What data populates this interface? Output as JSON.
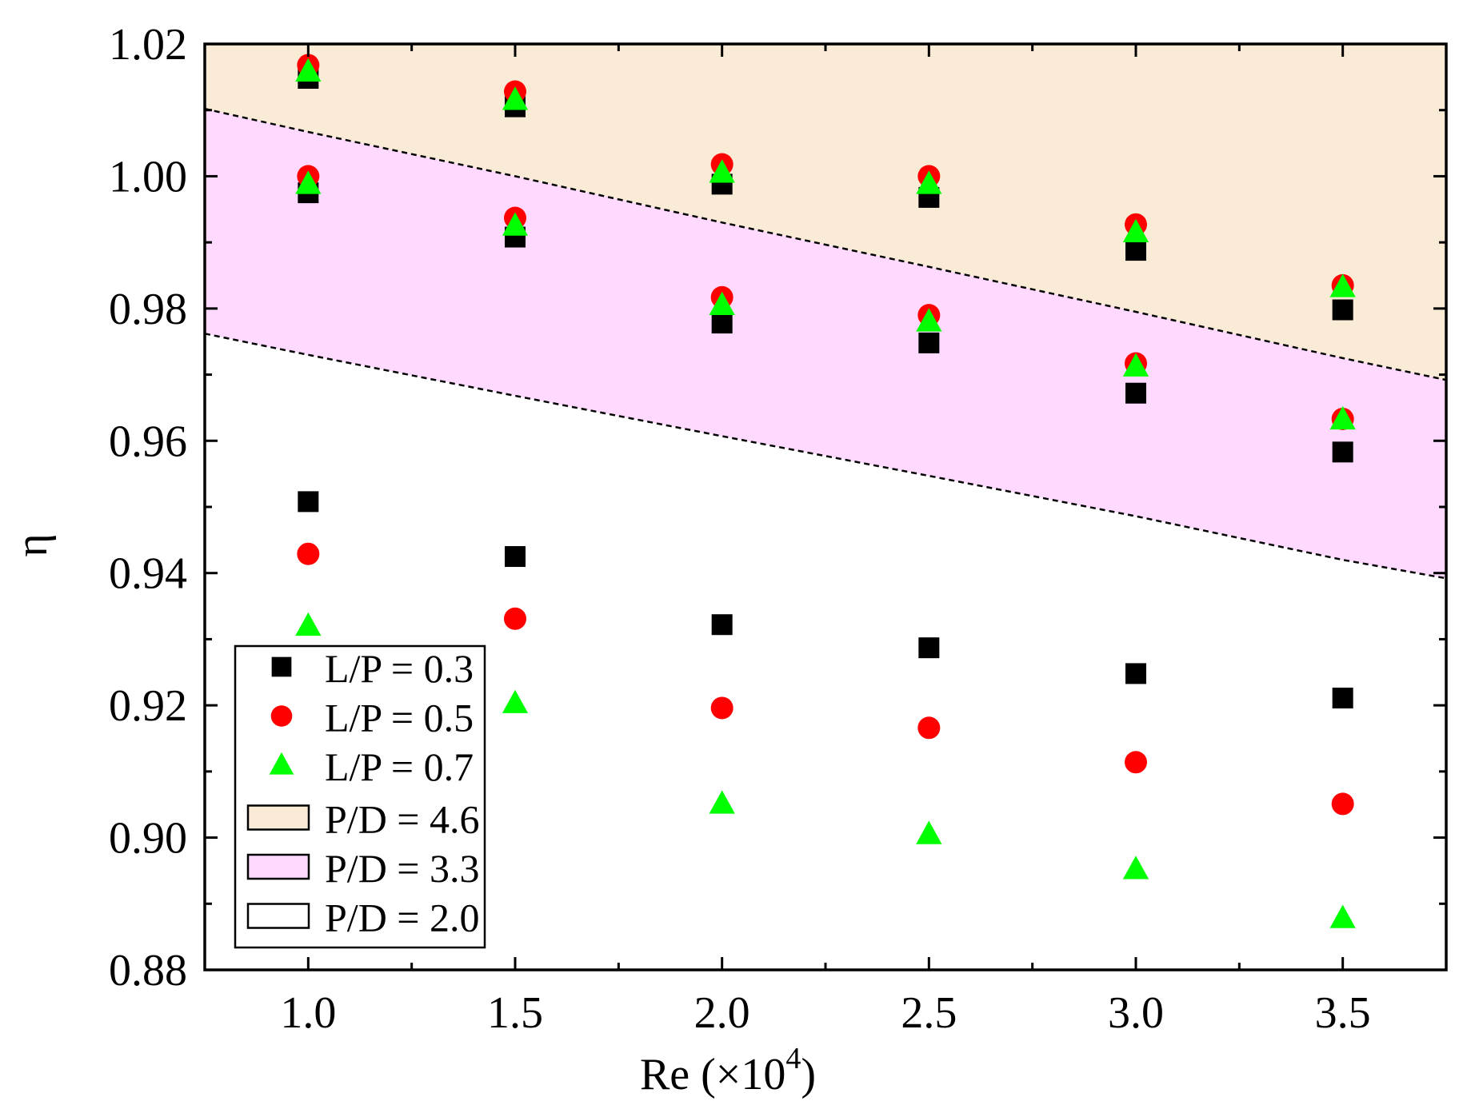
{
  "chart_data": {
    "type": "scatter",
    "xlabel": "Re (×10",
    "xlabel_sup": "4",
    "xlabel_close": ")",
    "ylabel": "η",
    "xlim": [
      0.75,
      3.75
    ],
    "ylim": [
      0.88,
      1.02
    ],
    "x_ticks": [
      1.0,
      1.5,
      2.0,
      2.5,
      3.0,
      3.5
    ],
    "x_tick_labels": [
      "1.0",
      "1.5",
      "2.0",
      "2.5",
      "3.0",
      "3.5"
    ],
    "y_ticks": [
      0.88,
      0.9,
      0.92,
      0.94,
      0.96,
      0.98,
      1.0,
      1.02
    ],
    "y_tick_labels": [
      "0.88",
      "0.90",
      "0.92",
      "0.94",
      "0.96",
      "0.98",
      "1.00",
      "1.02"
    ],
    "grid": false,
    "legend_position": "bottom-left",
    "x": [
      1.0,
      1.5,
      2.0,
      2.5,
      3.0,
      3.5
    ],
    "series": [
      {
        "name": "L/P = 0.3",
        "marker": "square",
        "color": "#000000",
        "groups": {
          "P/D = 4.6": [
            1.0148,
            1.0105,
            0.9988,
            0.9968,
            0.9888,
            0.9798
          ],
          "P/D = 3.3": [
            0.9975,
            0.9908,
            0.9778,
            0.9748,
            0.9672,
            0.9583
          ],
          "P/D = 2.0": [
            0.9508,
            0.9425,
            0.9322,
            0.9287,
            0.9248,
            0.9211
          ]
        }
      },
      {
        "name": "L/P = 0.5",
        "marker": "circle",
        "color": "#ff0000",
        "groups": {
          "P/D = 4.6": [
            1.0168,
            1.0128,
            1.0018,
            1.0,
            0.9927,
            0.9835
          ],
          "P/D = 3.3": [
            1.0,
            0.9937,
            0.9817,
            0.979,
            0.9717,
            0.9633
          ],
          "P/D = 2.0": [
            0.9429,
            0.9331,
            0.9196,
            0.9166,
            0.9114,
            0.9051
          ]
        }
      },
      {
        "name": "L/P = 0.7",
        "marker": "triangle",
        "color": "#00ff00",
        "groups": {
          "P/D = 4.6": [
            1.0158,
            1.0115,
            1.0005,
            0.9988,
            0.9915,
            0.9832
          ],
          "P/D = 3.3": [
            0.9988,
            0.9925,
            0.9805,
            0.978,
            0.9712,
            0.9632
          ],
          "P/D = 2.0": [
            0.932,
            0.9203,
            0.9051,
            0.9005,
            0.8952,
            0.8878
          ]
        }
      }
    ],
    "bands": [
      {
        "name": "P/D = 4.6",
        "fill": "#faebd7",
        "upper_x": [
          0.75,
          3.75
        ],
        "upper_y": [
          1.02,
          1.02
        ],
        "lower_x": [
          0.75,
          1.0,
          1.5,
          2.0,
          2.5,
          3.0,
          3.5,
          3.75
        ],
        "lower_y": [
          1.0102,
          1.0067,
          1.0,
          0.993,
          0.9863,
          0.9795,
          0.9725,
          0.9692
        ]
      },
      {
        "name": "P/D = 3.3",
        "fill": "#ffd9ff",
        "upper_x": [
          0.75,
          1.0,
          1.5,
          2.0,
          2.5,
          3.0,
          3.5,
          3.75
        ],
        "upper_y": [
          1.0102,
          1.0067,
          1.0,
          0.993,
          0.9863,
          0.9795,
          0.9725,
          0.9692
        ],
        "lower_x": [
          0.75,
          1.0,
          1.5,
          2.0,
          2.5,
          3.0,
          3.5,
          3.75
        ],
        "lower_y": [
          0.9762,
          0.973,
          0.9668,
          0.9607,
          0.9547,
          0.9486,
          0.942,
          0.9392
        ]
      },
      {
        "name": "P/D = 2.0",
        "fill": "#ffffff"
      }
    ],
    "legend": [
      {
        "label": "L/P = 0.3",
        "kind": "marker",
        "marker": "square",
        "color": "#000000"
      },
      {
        "label": "L/P = 0.5",
        "kind": "marker",
        "marker": "circle",
        "color": "#ff0000"
      },
      {
        "label": "L/P = 0.7",
        "kind": "marker",
        "marker": "triangle",
        "color": "#00ff00"
      },
      {
        "label": "P/D = 4.6",
        "kind": "patch",
        "color": "#faebd7"
      },
      {
        "label": "P/D = 3.3",
        "kind": "patch",
        "color": "#ffd9ff"
      },
      {
        "label": "P/D = 2.0",
        "kind": "patch",
        "color": "#ffffff"
      }
    ]
  }
}
